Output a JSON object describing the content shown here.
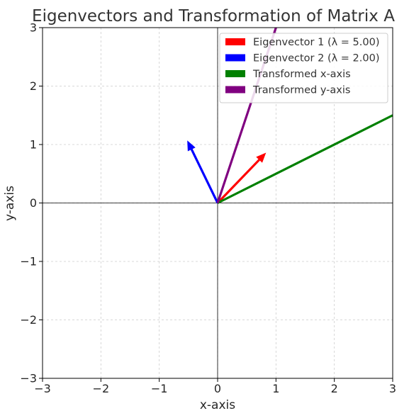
{
  "chart_data": {
    "type": "line",
    "title": "Eigenvectors and Transformation of Matrix A",
    "xlabel": "x-axis",
    "ylabel": "y-axis",
    "xlim": [
      -3,
      3
    ],
    "ylim": [
      -3,
      3
    ],
    "xticks": [
      -3,
      -2,
      -1,
      0,
      1,
      2,
      3
    ],
    "yticks": [
      -3,
      -2,
      -1,
      0,
      1,
      2,
      3
    ],
    "xtick_labels": [
      "−3",
      "−2",
      "−1",
      "0",
      "1",
      "2",
      "3"
    ],
    "ytick_labels": [
      "−3",
      "−2",
      "−1",
      "0",
      "1",
      "2",
      "3"
    ],
    "grid": true,
    "legend_position": "top-right",
    "series": [
      {
        "name": "Eigenvector 1 (λ = 5.00)",
        "kind": "arrow",
        "color": "#ff0000",
        "x": [
          0,
          0.83
        ],
        "y": [
          0,
          0.86
        ]
      },
      {
        "name": "Eigenvector 2 (λ = 2.00)",
        "kind": "arrow",
        "color": "#0000ff",
        "x": [
          0,
          -0.52
        ],
        "y": [
          0,
          1.07
        ]
      },
      {
        "name": "Transformed x-axis",
        "kind": "line",
        "color": "#008000",
        "x": [
          0,
          3
        ],
        "y": [
          0,
          1.5
        ]
      },
      {
        "name": "Transformed y-axis",
        "kind": "line",
        "color": "#800080",
        "x": [
          0,
          1
        ],
        "y": [
          0,
          3
        ]
      }
    ]
  }
}
